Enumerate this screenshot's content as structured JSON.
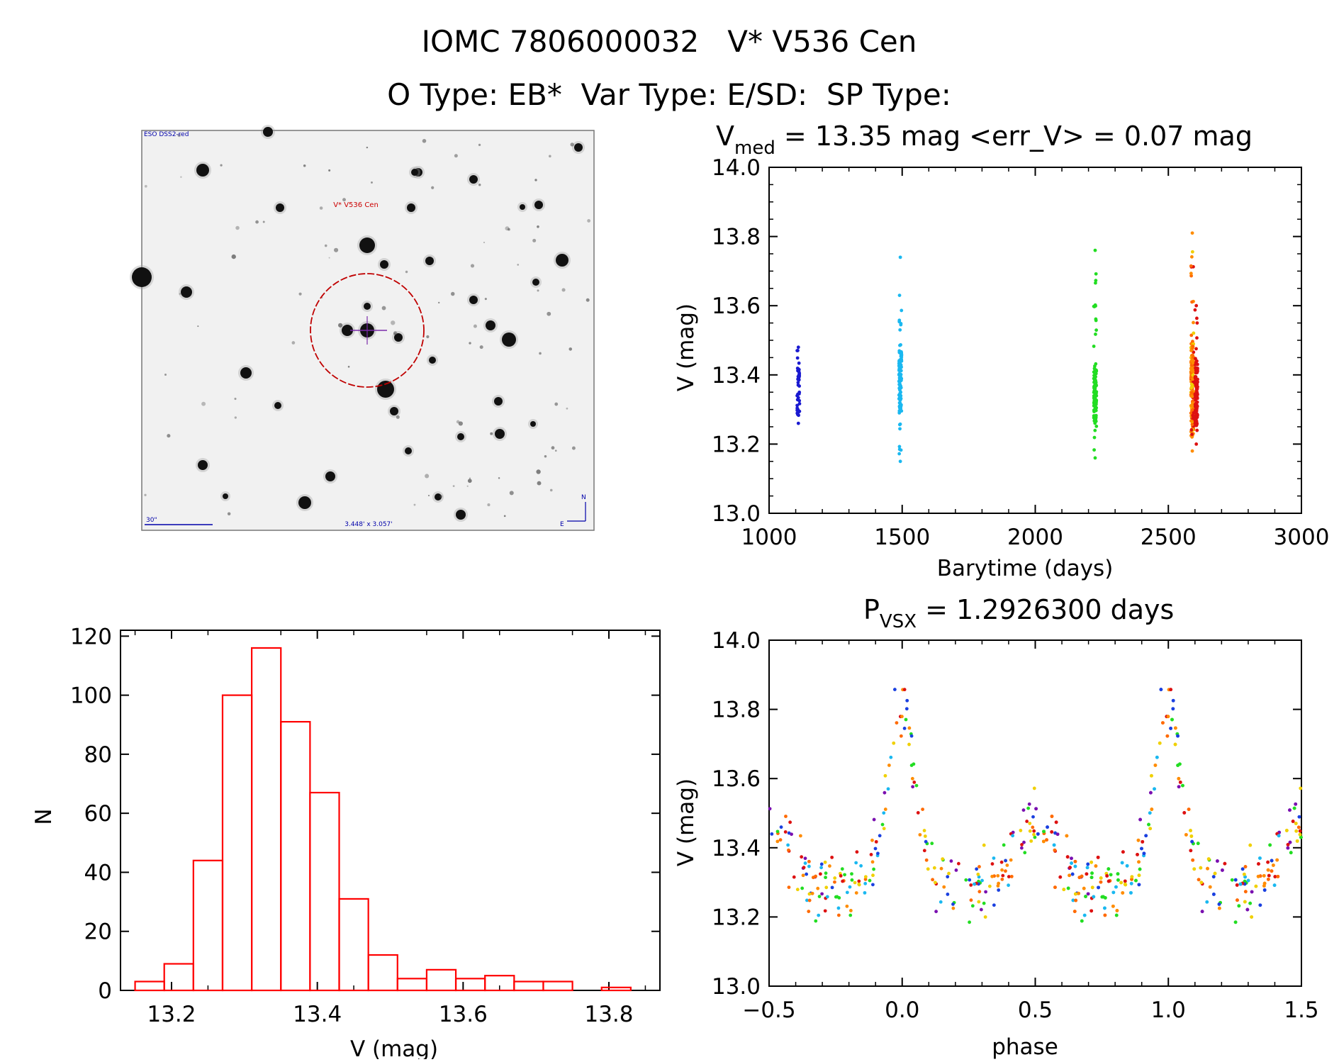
{
  "header": {
    "line1": "IOMC 7806000032   V* V536 Cen",
    "line2": "O Type: EB*  Var Type: E/SD:  SP Type:"
  },
  "finding_chart": {
    "corner_label": "ESO DSS2-red",
    "target_label": "V* V536 Cen",
    "scale_label": "30\"",
    "fov_label": "3.448' x 3.057'",
    "north": "N",
    "east": "E"
  },
  "colors": {
    "hist": "#ff0000",
    "circle": "#c00000",
    "label_red": "#cc0000",
    "label_blue": "#0000aa"
  },
  "chart_data": [
    {
      "type": "scatter",
      "title_main": "V",
      "title_sub": "med",
      "title_rest": " = 13.35 mag <err_V> = 0.07 mag",
      "xlabel": "Barytime (days)",
      "ylabel": "V (mag)",
      "xlim": [
        1000,
        3000
      ],
      "ylim": [
        14.0,
        13.0
      ],
      "xticks": [
        "1000",
        "1500",
        "2000",
        "2500",
        "3000"
      ],
      "yticks": [
        "13.0",
        "13.2",
        "13.4",
        "13.6",
        "13.8",
        "14.0"
      ],
      "groups": [
        {
          "name": "season1",
          "x": 1110,
          "ymin": 13.26,
          "ymax": 13.48,
          "core": [
            13.28,
            13.42
          ],
          "color": "#1a1ad0"
        },
        {
          "name": "season2",
          "x": 1493,
          "ymin": 13.15,
          "ymax": 13.74,
          "core": [
            13.29,
            13.47
          ],
          "color": "#1ab8f0"
        },
        {
          "name": "season3",
          "x": 2225,
          "ymin": 13.16,
          "ymax": 13.76,
          "core": [
            13.26,
            13.42
          ],
          "color": "#22dd22"
        },
        {
          "name": "season4a",
          "x": 2590,
          "ymin": 13.18,
          "ymax": 13.81,
          "core": [
            13.22,
            13.5
          ],
          "color": "#ff8c00"
        },
        {
          "name": "season4b",
          "x": 2605,
          "ymin": 13.2,
          "ymax": 13.6,
          "core": [
            13.25,
            13.45
          ],
          "color": "#dd1111"
        }
      ]
    },
    {
      "type": "bar",
      "title": "",
      "xlabel": "V (mag)",
      "ylabel": "N",
      "xlim": [
        13.13,
        13.87
      ],
      "ylim": [
        0,
        122
      ],
      "xticks": [
        "13.2",
        "13.4",
        "13.6",
        "13.8"
      ],
      "yticks": [
        "0",
        "20",
        "40",
        "60",
        "80",
        "100",
        "120"
      ],
      "bin_width": 0.04,
      "bin_starts": [
        13.15,
        13.19,
        13.23,
        13.27,
        13.31,
        13.35,
        13.39,
        13.43,
        13.47,
        13.51,
        13.55,
        13.59,
        13.63,
        13.67,
        13.71,
        13.75,
        13.79
      ],
      "values": [
        3,
        9,
        44,
        100,
        116,
        91,
        67,
        31,
        12,
        4,
        7,
        4,
        5,
        3,
        3,
        0,
        1
      ]
    },
    {
      "type": "scatter",
      "title_main": "P",
      "title_sub": "VSX",
      "title_rest": " = 1.2926300 days",
      "xlabel": "phase",
      "ylabel": "V (mag)",
      "xlim": [
        -0.5,
        1.5
      ],
      "ylim": [
        14.0,
        13.0
      ],
      "xticks": [
        "−0.5",
        "0.0",
        "0.5",
        "1.0",
        "1.5"
      ],
      "yticks": [
        "13.0",
        "13.2",
        "13.4",
        "13.6",
        "13.8",
        "14.0"
      ],
      "period_days": 1.29263,
      "light_curve": {
        "baseline": 13.32,
        "primary_depth": 0.46,
        "primary_center": 0.0,
        "primary_width": 0.045,
        "secondary_depth": 0.1,
        "secondary_center": 0.5,
        "secondary_width": 0.06
      },
      "palette": [
        "#dd1111",
        "#ff6a00",
        "#ff8c00",
        "#f0d000",
        "#22dd22",
        "#1ab8f0",
        "#1a40e0",
        "#7a10b0"
      ]
    }
  ]
}
